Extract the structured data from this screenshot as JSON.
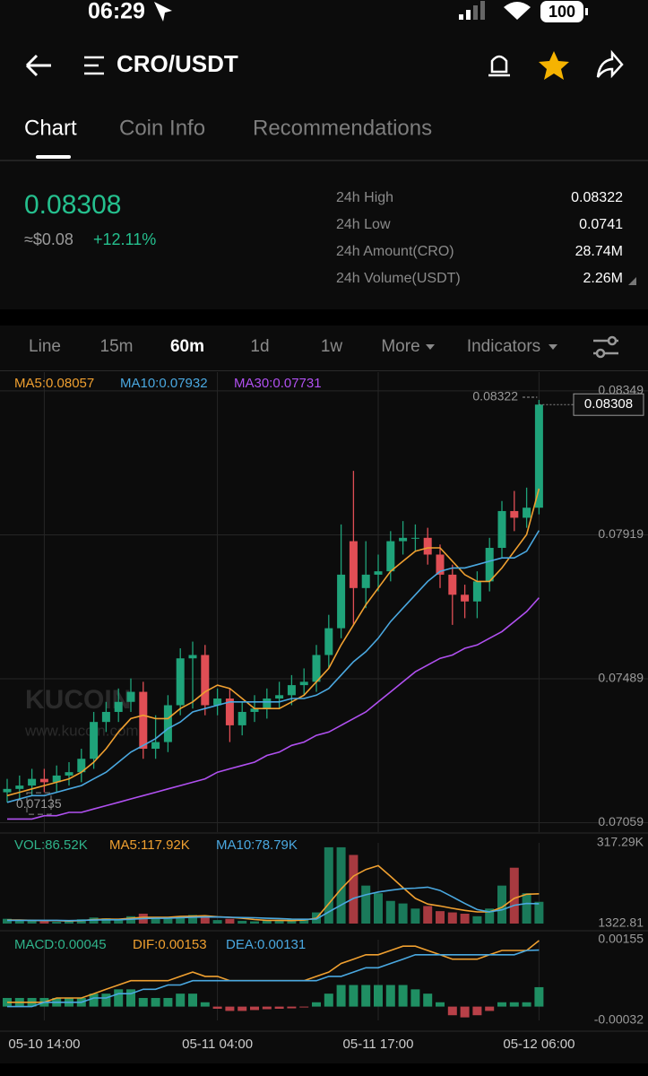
{
  "status_bar": {
    "time": "06:29",
    "battery": "100"
  },
  "header": {
    "title": "CRO/USDT"
  },
  "tabs": [
    "Chart",
    "Coin Info",
    "Recommendations"
  ],
  "ticker": {
    "price": "0.08308",
    "usd": "≈$0.08",
    "change": "+12.11%",
    "stats": [
      {
        "label": "24h High",
        "value": "0.08322"
      },
      {
        "label": "24h Low",
        "value": "0.0741"
      },
      {
        "label": "24h Amount(CRO)",
        "value": "28.74M"
      },
      {
        "label": "24h Volume(USDT)",
        "value": "2.26M"
      }
    ]
  },
  "intervals": [
    "Line",
    "15m",
    "60m",
    "1d",
    "1w",
    "More",
    "Indicators"
  ],
  "watermark": [
    "KUCOIN",
    "www.kucoin.com"
  ],
  "chart_data": [
    {
      "type": "candlestick",
      "ylim": [
        0.07031,
        0.08405
      ],
      "yticks": [
        0.08349,
        0.07919,
        0.07489,
        0.07059
      ],
      "grid": true,
      "up_color": "#1fa37a",
      "down_color": "#e04e55",
      "last_price": 0.08308,
      "high_marker": 0.08322,
      "low_marker": 0.07135,
      "candles": {
        "open": [
          0.0715,
          0.0716,
          0.0717,
          0.0719,
          0.0718,
          0.072,
          0.0721,
          0.0725,
          0.0736,
          0.0739,
          0.0742,
          0.0745,
          0.0728,
          0.073,
          0.0741,
          0.0755,
          0.0756,
          0.0741,
          0.0743,
          0.0735,
          0.0739,
          0.074,
          0.0743,
          0.0744,
          0.0747,
          0.0748,
          0.0756,
          0.0764,
          0.079,
          0.0776,
          0.078,
          0.0781,
          0.079,
          0.0791,
          0.0791,
          0.0786,
          0.078,
          0.0774,
          0.0772,
          0.0778,
          0.0788,
          0.0799,
          0.0797,
          0.08
        ],
        "high": [
          0.0719,
          0.072,
          0.0722,
          0.0722,
          0.0723,
          0.0724,
          0.0728,
          0.0739,
          0.0742,
          0.0746,
          0.0749,
          0.0748,
          0.0738,
          0.0744,
          0.0758,
          0.076,
          0.0759,
          0.0746,
          0.0746,
          0.0742,
          0.0744,
          0.0746,
          0.0748,
          0.075,
          0.0752,
          0.0759,
          0.0768,
          0.0795,
          0.0811,
          0.079,
          0.0786,
          0.0793,
          0.0796,
          0.0795,
          0.0794,
          0.0789,
          0.0783,
          0.0777,
          0.0781,
          0.0791,
          0.0802,
          0.0805,
          0.0806,
          0.08322
        ],
        "low": [
          0.0712,
          0.0713,
          0.0714,
          0.0715,
          0.0715,
          0.0717,
          0.0718,
          0.0722,
          0.0733,
          0.0736,
          0.0739,
          0.0725,
          0.0725,
          0.0727,
          0.0738,
          0.074,
          0.0738,
          0.0738,
          0.073,
          0.0732,
          0.0736,
          0.0737,
          0.074,
          0.0741,
          0.0744,
          0.0745,
          0.0752,
          0.0761,
          0.0765,
          0.077,
          0.0775,
          0.0778,
          0.0786,
          0.0787,
          0.0783,
          0.0776,
          0.0765,
          0.0767,
          0.0767,
          0.0775,
          0.0785,
          0.0793,
          0.0794,
          0.0798
        ],
        "close": [
          0.0716,
          0.0717,
          0.0719,
          0.0718,
          0.072,
          0.0721,
          0.0725,
          0.0736,
          0.0739,
          0.0742,
          0.0745,
          0.0728,
          0.073,
          0.0741,
          0.0755,
          0.0756,
          0.0741,
          0.0743,
          0.0735,
          0.0739,
          0.074,
          0.0743,
          0.0744,
          0.0747,
          0.0748,
          0.0756,
          0.0764,
          0.078,
          0.0776,
          0.078,
          0.0781,
          0.079,
          0.0791,
          0.0791,
          0.0786,
          0.078,
          0.0774,
          0.0772,
          0.0778,
          0.0788,
          0.0799,
          0.0797,
          0.08,
          0.08308
        ]
      },
      "series": [
        {
          "name": "MA5:0.08057",
          "color": "#f0a030",
          "kind": "line",
          "values": [
            0.0714,
            0.0715,
            0.0716,
            0.0717,
            0.0718,
            0.0719,
            0.0721,
            0.0724,
            0.0728,
            0.0733,
            0.0737,
            0.0738,
            0.0737,
            0.0737,
            0.074,
            0.0742,
            0.0745,
            0.0747,
            0.0746,
            0.0743,
            0.074,
            0.074,
            0.074,
            0.0742,
            0.0744,
            0.0748,
            0.0752,
            0.0759,
            0.0765,
            0.0771,
            0.0776,
            0.0781,
            0.0784,
            0.0787,
            0.0788,
            0.0788,
            0.0784,
            0.078,
            0.0778,
            0.0778,
            0.0782,
            0.0787,
            0.0792,
            0.08057
          ]
        },
        {
          "name": "MA10:0.07932",
          "color": "#4aa8e0",
          "kind": "line",
          "values": [
            0.0712,
            0.0713,
            0.0714,
            0.0714,
            0.0715,
            0.0716,
            0.0717,
            0.0719,
            0.0721,
            0.0724,
            0.0727,
            0.0729,
            0.0731,
            0.0734,
            0.0736,
            0.0739,
            0.074,
            0.0741,
            0.0742,
            0.0742,
            0.0742,
            0.0742,
            0.0742,
            0.0743,
            0.0743,
            0.0744,
            0.0746,
            0.075,
            0.0754,
            0.0757,
            0.0761,
            0.0766,
            0.077,
            0.0774,
            0.0778,
            0.0781,
            0.0782,
            0.0782,
            0.0783,
            0.0784,
            0.0785,
            0.0785,
            0.0787,
            0.07932
          ]
        },
        {
          "name": "MA30:0.07731",
          "color": "#b050f0",
          "kind": "line",
          "values": [
            0.0707,
            0.0707,
            0.0707,
            0.0708,
            0.0708,
            0.0709,
            0.0709,
            0.071,
            0.0711,
            0.0712,
            0.0713,
            0.0714,
            0.0715,
            0.0716,
            0.0717,
            0.0718,
            0.0719,
            0.0721,
            0.0722,
            0.0723,
            0.0724,
            0.0726,
            0.0727,
            0.0729,
            0.073,
            0.0732,
            0.0733,
            0.0735,
            0.0737,
            0.0739,
            0.0742,
            0.0745,
            0.0748,
            0.0751,
            0.0753,
            0.0755,
            0.0756,
            0.0758,
            0.0759,
            0.0761,
            0.0763,
            0.0766,
            0.0769,
            0.07731
          ]
        }
      ]
    },
    {
      "type": "bar",
      "ylim": [
        1322.81,
        317290
      ],
      "yticks": [
        {
          "value": 317290,
          "label": "317.29K"
        },
        1322.81
      ],
      "up_color": "#1a7a5a",
      "down_color": "#a83a40",
      "series": [
        {
          "name": "VOL:86.52K",
          "color": "#2fb38a",
          "kind": "bar",
          "values": [
            20000,
            12000,
            15000,
            10000,
            8000,
            12000,
            18000,
            25000,
            22000,
            15000,
            30000,
            40000,
            25000,
            20000,
            30000,
            35000,
            28000,
            15000,
            20000,
            12000,
            10000,
            15000,
            12000,
            18000,
            20000,
            45000,
            300000,
            300000,
            270000,
            150000,
            120000,
            90000,
            80000,
            60000,
            70000,
            50000,
            45000,
            40000,
            30000,
            60000,
            150000,
            220000,
            120000,
            86520
          ]
        },
        {
          "name": "MA5:117.92K",
          "color": "#f0a030",
          "kind": "line",
          "values": [
            15000,
            15000,
            14000,
            13000,
            13000,
            11000,
            13000,
            17000,
            19000,
            18000,
            22000,
            26000,
            26000,
            26000,
            29000,
            30000,
            32000,
            28000,
            26000,
            22000,
            17000,
            14000,
            14000,
            13000,
            15000,
            22000,
            79000,
            137000,
            187000,
            213000,
            228000,
            186000,
            142000,
            100000,
            78000,
            70000,
            61000,
            53000,
            47000,
            47000,
            65000,
            100000,
            116000,
            117920
          ]
        },
        {
          "name": "MA10:78.79K",
          "color": "#4aa8e0",
          "kind": "line",
          "values": [
            14000,
            14000,
            14000,
            14000,
            14000,
            13000,
            14000,
            15000,
            16000,
            16000,
            18000,
            21000,
            22000,
            22000,
            24000,
            26000,
            27000,
            27000,
            26000,
            25000,
            24000,
            22000,
            21000,
            19000,
            18000,
            19000,
            47000,
            74000,
            100000,
            114000,
            125000,
            132000,
            138000,
            140000,
            144000,
            131000,
            106000,
            80000,
            56000,
            47000,
            55000,
            73000,
            80000,
            78790
          ]
        }
      ]
    },
    {
      "type": "macd",
      "ylim": [
        -0.00032,
        0.00155
      ],
      "yticks": [
        0.00155,
        -0.00032
      ],
      "up_color": "#1f8f63",
      "down_color": "#b84048",
      "categories": [
        null,
        null,
        null,
        "05-10 14:00",
        null,
        null,
        null,
        null,
        null,
        null,
        null,
        null,
        null,
        null,
        null,
        null,
        null,
        "05-11 04:00",
        null,
        null,
        null,
        null,
        null,
        null,
        null,
        null,
        null,
        null,
        null,
        null,
        "05-11 17:00",
        null,
        null,
        null,
        null,
        null,
        null,
        null,
        null,
        null,
        null,
        null,
        null,
        "05-12 06:00"
      ],
      "series": [
        {
          "name": "MACD:0.00045",
          "color": "#2fb38a",
          "kind": "bar",
          "values": [
            0.0002,
            0.0002,
            0.0002,
            0.0002,
            0.0002,
            0.0002,
            0.0002,
            0.0003,
            0.0003,
            0.0004,
            0.0004,
            0.0002,
            0.0002,
            0.0002,
            0.0003,
            0.0003,
            0.0001,
            -5e-05,
            -0.0001,
            -0.0001,
            -8e-05,
            -6e-05,
            -5e-05,
            -4e-05,
            -2e-05,
            0.0001,
            0.0003,
            0.0005,
            0.0005,
            0.0005,
            0.0005,
            0.0005,
            0.0005,
            0.0004,
            0.0003,
            0.0001,
            -0.0002,
            -0.00025,
            -0.0002,
            -0.0001,
            0.0001,
            0.0001,
            0.0001,
            0.00045
          ]
        },
        {
          "name": "DIF:0.00153",
          "color": "#f0a030",
          "kind": "line",
          "values": [
            0.0001,
            0.0001,
            0.0001,
            0.0001,
            0.0002,
            0.0002,
            0.0002,
            0.0003,
            0.0004,
            0.0005,
            0.0006,
            0.0006,
            0.0006,
            0.0006,
            0.0007,
            0.0008,
            0.0007,
            0.0007,
            0.0006,
            0.0006,
            0.0006,
            0.0006,
            0.0006,
            0.0006,
            0.0006,
            0.0007,
            0.0008,
            0.001,
            0.0011,
            0.0012,
            0.0012,
            0.0013,
            0.0014,
            0.0014,
            0.0013,
            0.0012,
            0.0011,
            0.0011,
            0.0011,
            0.0012,
            0.0013,
            0.0013,
            0.0013,
            0.00153
          ]
        },
        {
          "name": "DEA:0.00131",
          "color": "#4aa8e0",
          "kind": "line",
          "values": [
            0.0,
            0.0,
            0.0,
            0.0001,
            0.0001,
            0.0001,
            0.0001,
            0.0002,
            0.0002,
            0.0003,
            0.0003,
            0.0004,
            0.0004,
            0.0005,
            0.0005,
            0.0006,
            0.0006,
            0.0006,
            0.0006,
            0.0006,
            0.0006,
            0.0006,
            0.0006,
            0.0006,
            0.0006,
            0.0006,
            0.0007,
            0.0007,
            0.0008,
            0.0009,
            0.0009,
            0.001,
            0.0011,
            0.0012,
            0.0012,
            0.0012,
            0.0012,
            0.0012,
            0.0012,
            0.0012,
            0.0012,
            0.0012,
            0.0013,
            0.00131
          ]
        }
      ]
    }
  ]
}
